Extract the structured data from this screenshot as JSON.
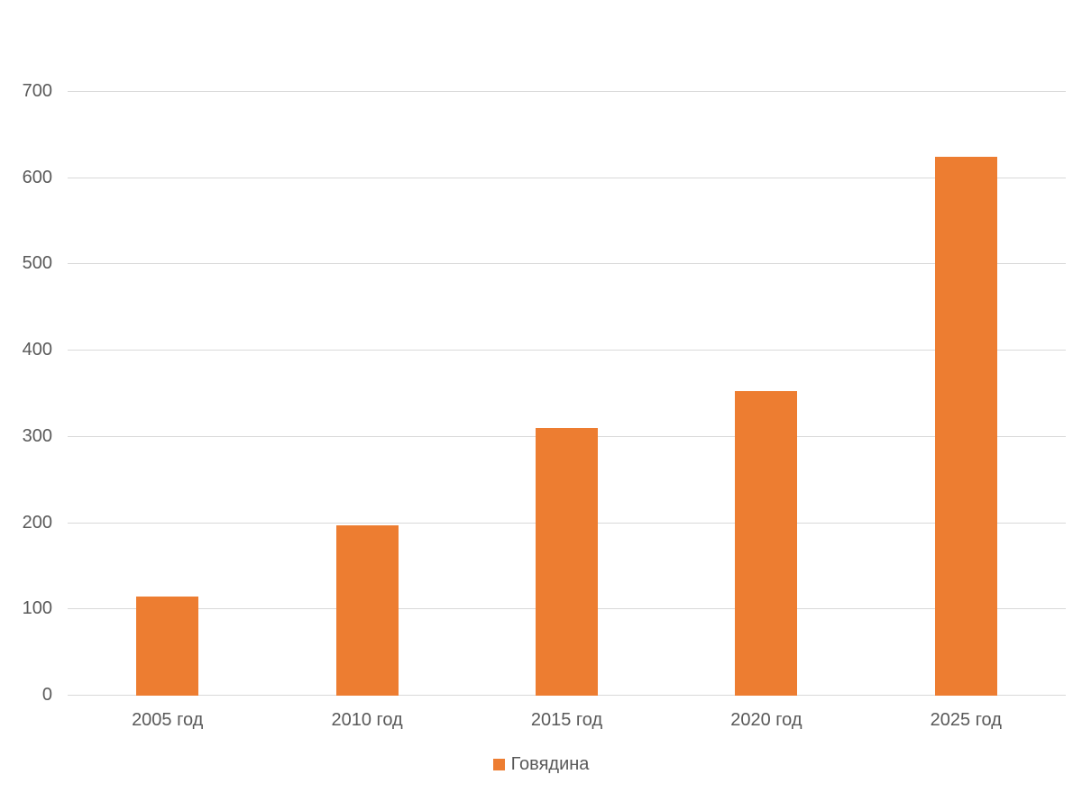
{
  "chart_data": {
    "type": "bar",
    "title": "",
    "categories": [
      "2005 год",
      "2010 год",
      "2015 год",
      "2020 год",
      "2025 год"
    ],
    "series": [
      {
        "name": "Говядина",
        "values": [
          115,
          197,
          310,
          353,
          625
        ]
      }
    ],
    "xlabel": "",
    "ylabel": "",
    "ylim": [
      0,
      700
    ],
    "y_ticks": [
      0,
      100,
      200,
      300,
      400,
      500,
      600,
      700
    ],
    "grid": "horizontal",
    "legend_position": "bottom"
  },
  "legend": {
    "label": "Говядина"
  },
  "colors": {
    "bar": "#ED7D31",
    "gridline": "#D9D9D9",
    "axis_text": "#595959",
    "background": "#FFFFFF"
  }
}
